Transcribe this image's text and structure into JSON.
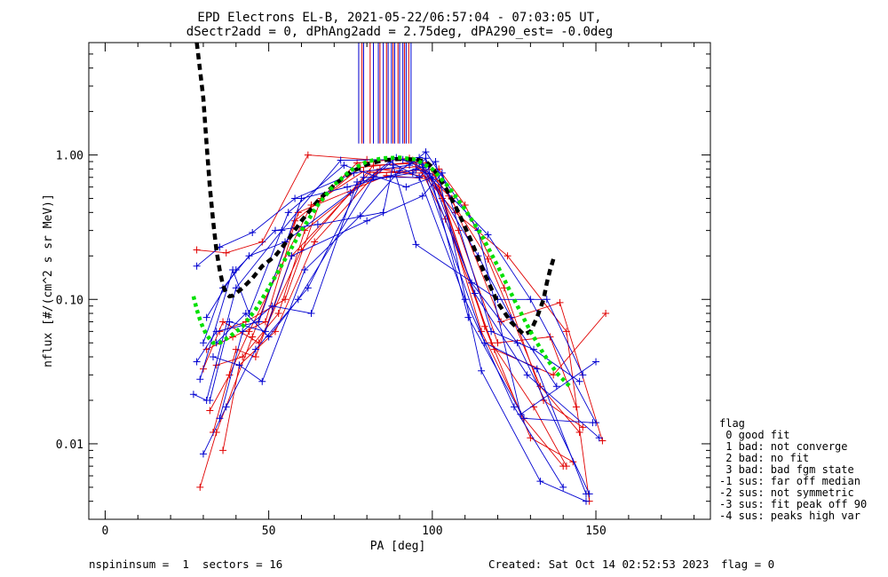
{
  "chart_data": {
    "type": "line",
    "title": "EPD Electrons EL-B, 2021-05-22/06:57:04 - 07:03:05 UT,",
    "subtitle": "dSectr2add = 0, dPhAng2add = 2.75deg, dPA290_est=  -0.0deg",
    "xlabel": "PA [deg]",
    "ylabel": "nflux [#/(cm^2 s sr MeV)]",
    "xlim": [
      -5,
      185
    ],
    "ylim": [
      0.003,
      6.0
    ],
    "yscale": "log",
    "xticks": [
      0,
      50,
      100,
      150
    ],
    "xtick_labels": [
      "0",
      "50",
      "100",
      "150"
    ],
    "yticks": [
      0.01,
      0.1,
      1.0
    ],
    "ytick_labels": [
      "0.01",
      "0.10",
      "1.00"
    ],
    "colors": {
      "red": "#e00000",
      "blue": "#0000d0",
      "black": "#000000",
      "green": "#00e000"
    },
    "series": [
      {
        "color": "red",
        "x": [
          28,
          37,
          48,
          62,
          80,
          94,
          102,
          115,
          128,
          140
        ],
        "y": [
          0.22,
          0.21,
          0.25,
          1.0,
          0.93,
          0.92,
          0.6,
          0.06,
          0.015,
          0.007
        ]
      },
      {
        "color": "red",
        "x": [
          29,
          34,
          45,
          58,
          78,
          96,
          103,
          118,
          131,
          141
        ],
        "y": [
          0.005,
          0.012,
          0.055,
          0.35,
          0.82,
          0.9,
          0.5,
          0.05,
          0.018,
          0.007
        ]
      },
      {
        "color": "red",
        "x": [
          30,
          36,
          47,
          60,
          82,
          98,
          105,
          117,
          133,
          145
        ],
        "y": [
          0.033,
          0.07,
          0.05,
          0.22,
          0.85,
          0.88,
          0.52,
          0.19,
          0.025,
          0.012
        ]
      },
      {
        "color": "red",
        "x": [
          32,
          38,
          44,
          63,
          79,
          95,
          101,
          116,
          130,
          143
        ],
        "y": [
          0.017,
          0.03,
          0.06,
          0.45,
          0.77,
          0.83,
          0.72,
          0.065,
          0.011,
          0.0075
        ]
      },
      {
        "color": "red",
        "x": [
          33,
          40,
          46,
          57,
          81,
          97,
          104,
          119,
          137,
          153
        ],
        "y": [
          0.012,
          0.045,
          0.04,
          0.2,
          0.76,
          0.75,
          0.36,
          0.045,
          0.03,
          0.08
        ]
      },
      {
        "color": "red",
        "x": [
          36,
          41,
          52,
          64,
          84,
          99,
          106,
          121,
          139,
          152
        ],
        "y": [
          0.009,
          0.035,
          0.06,
          0.25,
          0.8,
          0.7,
          0.5,
          0.07,
          0.095,
          0.0105
        ]
      },
      {
        "color": "red",
        "x": [
          35,
          43,
          55,
          66,
          77,
          93,
          107,
          123,
          141,
          148
        ],
        "y": [
          0.06,
          0.07,
          0.1,
          0.5,
          0.88,
          0.95,
          0.4,
          0.2,
          0.06,
          0.004
        ]
      },
      {
        "color": "red",
        "x": [
          31,
          39,
          49,
          59,
          86,
          100,
          108,
          120,
          136,
          144
        ],
        "y": [
          0.045,
          0.055,
          0.07,
          0.4,
          0.72,
          0.68,
          0.3,
          0.05,
          0.055,
          0.018
        ]
      },
      {
        "color": "red",
        "x": [
          34,
          42,
          53,
          61,
          83,
          102,
          110,
          122,
          134,
          146
        ],
        "y": [
          0.035,
          0.04,
          0.08,
          0.3,
          0.75,
          0.8,
          0.45,
          0.12,
          0.02,
          0.013
        ]
      },
      {
        "color": "blue",
        "x": [
          28,
          35,
          45,
          58,
          76,
          93,
          98,
          114,
          127,
          150
        ],
        "y": [
          0.17,
          0.23,
          0.29,
          0.5,
          0.75,
          0.85,
          1.05,
          0.3,
          0.016,
          0.037
        ]
      },
      {
        "color": "blue",
        "x": [
          27,
          31,
          40,
          54,
          72,
          91,
          97,
          112,
          126,
          148
        ],
        "y": [
          0.022,
          0.02,
          0.12,
          0.3,
          0.92,
          0.93,
          0.86,
          0.13,
          0.05,
          0.0045
        ]
      },
      {
        "color": "blue",
        "x": [
          28,
          34,
          47,
          60,
          74,
          95,
          99,
          117,
          130,
          150
        ],
        "y": [
          0.037,
          0.06,
          0.07,
          0.5,
          0.6,
          0.8,
          0.74,
          0.28,
          0.1,
          0.014
        ]
      },
      {
        "color": "blue",
        "x": [
          30,
          37,
          46,
          62,
          79,
          96,
          101,
          115,
          133,
          147
        ],
        "y": [
          0.0085,
          0.018,
          0.045,
          0.12,
          0.7,
          0.7,
          0.9,
          0.032,
          0.0055,
          0.004
        ]
      },
      {
        "color": "blue",
        "x": [
          29,
          39,
          44,
          56,
          73,
          92,
          100,
          113,
          129,
          151
        ],
        "y": [
          0.028,
          0.16,
          0.08,
          0.4,
          0.85,
          0.6,
          0.7,
          0.11,
          0.03,
          0.011
        ]
      },
      {
        "color": "blue",
        "x": [
          32,
          38,
          49,
          57,
          80,
          97,
          103,
          118,
          131,
          145
        ],
        "y": [
          0.02,
          0.07,
          0.06,
          0.2,
          0.35,
          0.52,
          0.75,
          0.06,
          0.045,
          0.027
        ]
      },
      {
        "color": "blue",
        "x": [
          33,
          41,
          48,
          61,
          78,
          90,
          96,
          114,
          124,
          138
        ],
        "y": [
          0.04,
          0.035,
          0.027,
          0.16,
          0.38,
          0.78,
          0.96,
          0.2,
          0.075,
          0.025
        ]
      },
      {
        "color": "blue",
        "x": [
          35,
          42,
          51,
          63,
          77,
          94,
          98,
          111,
          128,
          149
        ],
        "y": [
          0.015,
          0.06,
          0.09,
          0.08,
          0.65,
          0.75,
          0.95,
          0.075,
          0.015,
          0.014
        ]
      },
      {
        "color": "blue",
        "x": [
          34,
          43,
          50,
          59,
          82,
          89,
          97,
          116,
          132,
          147
        ],
        "y": [
          0.05,
          0.08,
          0.055,
          0.1,
          0.7,
          0.96,
          0.82,
          0.05,
          0.033,
          0.0045
        ]
      },
      {
        "color": "blue",
        "x": [
          31,
          40,
          52,
          65,
          85,
          88,
          95,
          120,
          135,
          146
        ],
        "y": [
          0.075,
          0.16,
          0.3,
          0.33,
          0.4,
          0.85,
          0.24,
          0.1,
          0.1,
          0.03
        ]
      },
      {
        "color": "blue",
        "x": [
          30,
          36,
          44,
          55,
          75,
          87,
          96,
          110,
          125,
          140
        ],
        "y": [
          0.05,
          0.12,
          0.2,
          0.25,
          0.55,
          0.9,
          0.7,
          0.1,
          0.018,
          0.005
        ]
      },
      {
        "color": "black",
        "x": [
          28,
          30,
          31,
          32,
          33,
          34,
          35,
          36,
          37,
          38,
          39,
          40,
          42,
          45,
          48,
          52,
          56,
          60,
          65,
          70,
          75,
          80,
          85,
          90,
          95,
          98,
          100,
          104,
          108,
          112,
          116,
          120,
          124,
          128,
          130,
          132,
          134,
          135,
          136,
          137
        ],
        "y": [
          6.0,
          2.5,
          1.2,
          0.6,
          0.35,
          0.22,
          0.16,
          0.125,
          0.11,
          0.105,
          0.106,
          0.11,
          0.12,
          0.14,
          0.17,
          0.2,
          0.26,
          0.35,
          0.48,
          0.62,
          0.76,
          0.86,
          0.92,
          0.94,
          0.93,
          0.9,
          0.82,
          0.6,
          0.4,
          0.25,
          0.15,
          0.095,
          0.07,
          0.057,
          0.06,
          0.075,
          0.1,
          0.13,
          0.16,
          0.19
        ]
      },
      {
        "color": "green",
        "x": [
          27,
          28,
          29,
          30,
          31,
          32,
          33,
          35,
          38,
          42,
          46,
          50,
          55,
          60,
          65,
          70,
          75,
          80,
          85,
          90,
          95,
          100,
          105,
          110,
          115,
          120,
          125,
          130,
          134,
          138,
          142
        ],
        "y": [
          0.105,
          0.085,
          0.072,
          0.063,
          0.057,
          0.053,
          0.05,
          0.05,
          0.055,
          0.065,
          0.085,
          0.12,
          0.19,
          0.3,
          0.45,
          0.62,
          0.78,
          0.9,
          0.95,
          0.96,
          0.93,
          0.8,
          0.6,
          0.42,
          0.28,
          0.17,
          0.1,
          0.06,
          0.042,
          0.031,
          0.025
        ]
      }
    ],
    "markers": {
      "blue": [
        77.5,
        79,
        82,
        83.5,
        85,
        86.5,
        87.5,
        88.5,
        90,
        91,
        92,
        93.5
      ],
      "red": [
        78.5,
        81,
        84,
        86,
        88,
        89.5,
        91.5,
        92.8
      ]
    },
    "legend": {
      "position": "right",
      "title": "flag",
      "items": [
        " 0 good fit",
        " 1 bad: not converge",
        " 2 bad: no fit",
        " 3 bad: bad fgm state",
        "-1 sus: far off median",
        "-2 sus: not symmetric",
        "-3 sus: fit peak off 90",
        "-4 sus: peaks high var"
      ]
    }
  },
  "footer": {
    "left": "nspininsum =  1  sectors = 16",
    "created": "Created: Sat Oct 14 02:52:53 2023",
    "flag": "flag = 0"
  }
}
